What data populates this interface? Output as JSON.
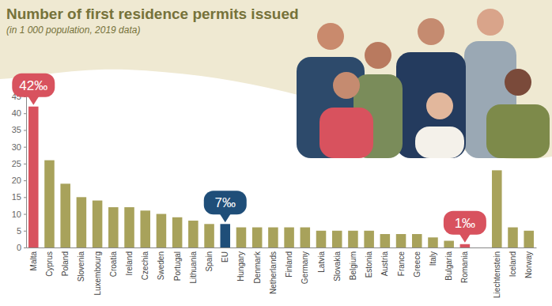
{
  "chart_data": {
    "type": "bar",
    "title": "Number of first residence permits issued",
    "subtitle": "(in 1 000 population, 2019 data)",
    "categories": [
      "Malta",
      "Cyprus",
      "Poland",
      "Slovenia",
      "Luxembourg",
      "Croatia",
      "Ireland",
      "Czechia",
      "Sweden",
      "Portugal",
      "Lithuania",
      "Spain",
      "EU",
      "Hungary",
      "Denmark",
      "Netherlands",
      "Finland",
      "Germany",
      "Latvia",
      "Slovakia",
      "Belgium",
      "Estonia",
      "Austria",
      "France",
      "Greece",
      "Italy",
      "Bulgaria",
      "Romania",
      null,
      "Liechtenstein",
      "Iceland",
      "Norway"
    ],
    "values": [
      42,
      26,
      19,
      15,
      14,
      12,
      12,
      11,
      10,
      9,
      8,
      7,
      7,
      6,
      6,
      6,
      6,
      6,
      5,
      5,
      5,
      5,
      4,
      4,
      4,
      3,
      2,
      1,
      null,
      23,
      6,
      5
    ],
    "colors": [
      "#d8525e",
      "#a8a25b",
      "#a8a25b",
      "#a8a25b",
      "#a8a25b",
      "#a8a25b",
      "#a8a25b",
      "#a8a25b",
      "#a8a25b",
      "#a8a25b",
      "#a8a25b",
      "#a8a25b",
      "#1f4e79",
      "#a8a25b",
      "#a8a25b",
      "#a8a25b",
      "#a8a25b",
      "#a8a25b",
      "#a8a25b",
      "#a8a25b",
      "#a8a25b",
      "#a8a25b",
      "#a8a25b",
      "#a8a25b",
      "#a8a25b",
      "#a8a25b",
      "#a8a25b",
      "#d8525e",
      null,
      "#a8a25b",
      "#a8a25b",
      "#a8a25b"
    ],
    "ylim": [
      0,
      45
    ],
    "yticks": [
      0,
      5,
      10,
      15,
      20,
      25,
      30,
      35,
      40,
      45
    ],
    "annotations": [
      {
        "text": "42‰",
        "category": "Malta",
        "value": 42
      },
      {
        "text": "7‰",
        "category": "EU",
        "value": 7
      },
      {
        "text": "1‰",
        "category": "Romania",
        "value": 1
      }
    ]
  }
}
